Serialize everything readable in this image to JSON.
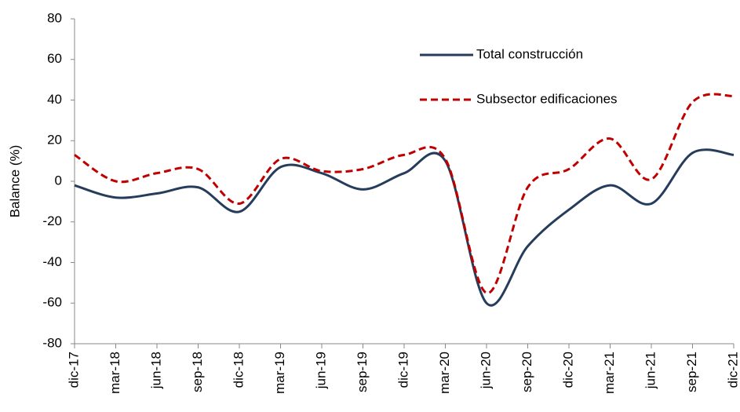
{
  "chart_data": {
    "type": "line",
    "y_label": "Balance (%)",
    "categories": [
      "dic-17",
      "mar-18",
      "jun-18",
      "sep-18",
      "dic-18",
      "mar-19",
      "jun-19",
      "sep-19",
      "dic-19",
      "mar-20",
      "jun-20",
      "sep-20",
      "dic-20",
      "mar-21",
      "jun-21",
      "sep-21",
      "dic-21"
    ],
    "series": [
      {
        "name": "Total construcción",
        "color": "#253d5b",
        "dash": false,
        "values": [
          -2,
          -8,
          -6,
          -3,
          -15,
          7,
          4,
          -4,
          4,
          10,
          -60,
          -32,
          -14,
          -2,
          -11,
          14,
          13
        ]
      },
      {
        "name": "Subsector edificaciones",
        "color": "#c00000",
        "dash": true,
        "values": [
          13,
          0,
          4,
          6,
          -11,
          11,
          5,
          6,
          13,
          11,
          -55,
          -3,
          6,
          21,
          1,
          39,
          42
        ]
      }
    ],
    "ylim": [
      -80,
      80
    ],
    "yticks": [
      -80,
      -60,
      -40,
      -20,
      0,
      20,
      40,
      60,
      80
    ],
    "grid": false,
    "legend": "top-right"
  }
}
